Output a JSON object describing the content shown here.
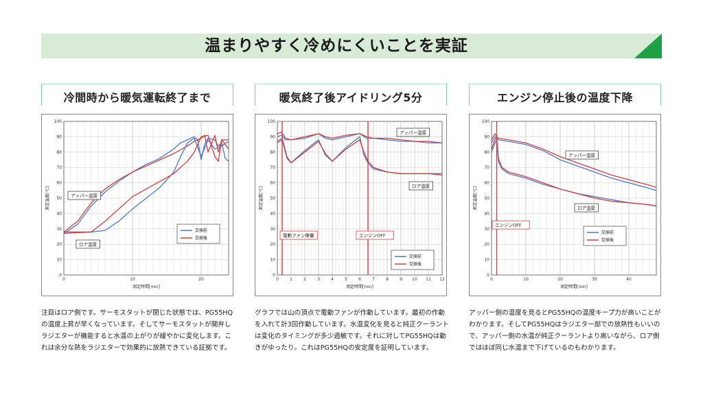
{
  "banner": {
    "title": "温まりやすく冷めにくいことを実証",
    "accent": "#1fa046",
    "bg": "#d7ebd7"
  },
  "panels": [
    {
      "title": "冷間時から暖気運転終了まで",
      "text": "注目はロア側です。サーモスタットが閉じた状態では、PG55HQの温度上昇が早くなっています。そしてサーモスタットが開弁しラジエターが機能すると水温の上がりが緩やかに変化します。これは余分な熱をラジエターで効果的に放熱できている証拠です。"
    },
    {
      "title": "暖気終了後アイドリング5分",
      "text": "グラフでは山の頂点で電動ファンが作動しています。最初の作動を入れて計3回作動しています。水温変化を見ると純正クーラントは変化のタイミングが多少過敏です。それに対してPG55HQは動きがゆったり。これはPG55HQの安定度を証明しています。"
    },
    {
      "title": "エンジン停止後の温度下降",
      "text": "アッパー側の温度を見るとPG55HQの温度キープ力が高いことがわかります。そしてPG55HQはラジエター部での放熱性もいいので、アッパー側の水温が純正クーラントより高いながら、ロア側ではほぼ同じ水温まで下げているのもわかります。"
    }
  ],
  "chart_data": [
    {
      "type": "line",
      "xlabel": "測定時間[min]",
      "ylabel": "測定温度[℃]",
      "xlim": [
        0,
        24
      ],
      "ylim": [
        0,
        100
      ],
      "xticks": [
        0,
        10,
        20
      ],
      "yticks": [
        0,
        10,
        20,
        30,
        40,
        50,
        60,
        70,
        80,
        90,
        100
      ],
      "annotations": [
        "アッパー温度",
        "ロア温度"
      ],
      "legend": {
        "position": "bottom-right",
        "entries": [
          "交換前",
          "交換後"
        ]
      },
      "series": [
        {
          "name": "交換前",
          "group": "アッパー温度",
          "color": "#4a78c8",
          "x": [
            0,
            2,
            4,
            6,
            8,
            10,
            12,
            14,
            16,
            17,
            18,
            19,
            19.5,
            20,
            20.5,
            21,
            22,
            22.5,
            23,
            23.5,
            24
          ],
          "y": [
            27,
            33,
            45,
            54,
            61,
            67,
            72,
            76,
            82,
            86,
            88,
            90,
            88,
            75,
            85,
            89,
            88,
            84,
            86,
            76,
            74
          ]
        },
        {
          "name": "交換後",
          "group": "アッパー温度",
          "color": "#d43c3c",
          "x": [
            0,
            2,
            4,
            6,
            8,
            10,
            12,
            14,
            16,
            18,
            19,
            20,
            20.5,
            21,
            22,
            22.5,
            23,
            24
          ],
          "y": [
            28,
            35,
            47,
            56,
            62,
            67,
            71,
            75,
            79,
            84,
            87,
            89,
            91,
            80,
            91,
            80,
            88,
            82
          ]
        },
        {
          "name": "交換前",
          "group": "ロア温度",
          "color": "#4a78c8",
          "x": [
            0,
            4,
            6,
            8,
            10,
            12,
            14,
            16,
            17,
            18,
            19,
            20,
            21,
            22,
            23,
            24
          ],
          "y": [
            27,
            28,
            29,
            35,
            43,
            50,
            57,
            67,
            77,
            86,
            89,
            77,
            88,
            82,
            84,
            87
          ]
        },
        {
          "name": "交換後",
          "group": "ロア温度",
          "color": "#d43c3c",
          "x": [
            0,
            4,
            6,
            8,
            10,
            12,
            14,
            16,
            18,
            19,
            20,
            21,
            22,
            22.5,
            23,
            24
          ],
          "y": [
            28,
            28,
            35,
            43,
            51,
            56,
            61,
            66,
            74,
            80,
            90,
            91,
            77,
            74,
            88,
            88
          ]
        }
      ]
    },
    {
      "type": "line",
      "xlabel": "測定時間[min]",
      "ylabel": "測定温度[℃]",
      "xlim": [
        0,
        12
      ],
      "ylim": [
        0,
        100
      ],
      "xticks": [
        0,
        1,
        2,
        3,
        4,
        5,
        6,
        7,
        8,
        9,
        10,
        11,
        12
      ],
      "yticks": [
        0,
        10,
        20,
        30,
        40,
        50,
        60,
        70,
        80,
        90,
        100
      ],
      "annotations": [
        "アッパー温度",
        "ロア温度",
        "電動ファン稼働",
        "エンジンOFF"
      ],
      "legend": {
        "position": "bottom-right",
        "entries": [
          "交換前",
          "交換後"
        ]
      },
      "vlines": [
        0.35,
        6.6
      ],
      "series": [
        {
          "name": "交換前",
          "group": "アッパー温度",
          "color": "#4a78c8",
          "x": [
            0,
            0.3,
            0.6,
            1,
            2,
            3,
            3.5,
            4,
            5,
            6,
            6.5,
            7,
            8,
            9,
            10,
            11,
            12
          ],
          "y": [
            90,
            91,
            88,
            88,
            89,
            92,
            89,
            88,
            90,
            92,
            89,
            89,
            88,
            87,
            87,
            86,
            86
          ]
        },
        {
          "name": "交換後",
          "group": "アッパー温度",
          "color": "#d43c3c",
          "x": [
            0,
            0.3,
            0.6,
            1,
            2,
            3,
            3.5,
            4,
            5,
            6,
            6.5,
            7,
            8,
            9,
            10,
            11,
            12
          ],
          "y": [
            92,
            93,
            89,
            88,
            90,
            92,
            90,
            89,
            91,
            92,
            90,
            89,
            89,
            88,
            87,
            87,
            86
          ]
        },
        {
          "name": "交換前",
          "group": "ロア温度",
          "color": "#4a78c8",
          "x": [
            0,
            0.35,
            0.7,
            1,
            2,
            3,
            3.5,
            4,
            5,
            6,
            6.3,
            6.6,
            7,
            8,
            9,
            10,
            11,
            12
          ],
          "y": [
            86,
            88,
            76,
            73,
            81,
            88,
            78,
            74,
            83,
            90,
            78,
            73,
            69,
            67,
            66,
            66,
            66,
            66
          ]
        },
        {
          "name": "交換後",
          "group": "ロア温度",
          "color": "#d43c3c",
          "x": [
            0,
            0.35,
            0.7,
            1,
            2,
            3,
            3.5,
            4,
            5,
            6,
            6.3,
            6.6,
            7,
            8,
            9,
            10,
            11,
            12
          ],
          "y": [
            87,
            89,
            77,
            73,
            80,
            87,
            79,
            74,
            82,
            88,
            80,
            74,
            70,
            67,
            66,
            66,
            66,
            65
          ]
        }
      ]
    },
    {
      "type": "line",
      "xlabel": "測定時間[min]",
      "ylabel": "測定温度[℃]",
      "xlim": [
        0,
        48
      ],
      "ylim": [
        0,
        100
      ],
      "xticks": [
        0,
        10,
        20,
        30,
        40
      ],
      "yticks": [
        0,
        10,
        20,
        30,
        40,
        50,
        60,
        70,
        80,
        90,
        100
      ],
      "annotations": [
        "アッパー温度",
        "ロア温度",
        "エンジンOFF"
      ],
      "legend": {
        "position": "bottom-right",
        "entries": [
          "交換前",
          "交換後"
        ]
      },
      "vlines": [
        1.5
      ],
      "series": [
        {
          "name": "交換前",
          "group": "アッパー温度",
          "color": "#4a78c8",
          "x": [
            0,
            1,
            1.5,
            2,
            5,
            10,
            15,
            20,
            25,
            30,
            35,
            40,
            45,
            48
          ],
          "y": [
            86,
            90,
            89,
            88,
            87,
            85,
            81,
            75,
            71,
            67,
            63,
            60,
            57,
            55
          ]
        },
        {
          "name": "交換後",
          "group": "アッパー温度",
          "color": "#d43c3c",
          "x": [
            0,
            1,
            1.5,
            2,
            5,
            10,
            15,
            20,
            25,
            30,
            35,
            40,
            45,
            48
          ],
          "y": [
            88,
            92,
            90,
            89,
            88,
            86,
            82,
            77,
            73,
            69,
            65,
            62,
            59,
            57
          ]
        },
        {
          "name": "交換前",
          "group": "ロア温度",
          "color": "#4a78c8",
          "x": [
            0,
            1,
            1.5,
            2,
            3,
            5,
            10,
            15,
            20,
            25,
            30,
            35,
            40,
            45,
            48
          ],
          "y": [
            80,
            86,
            88,
            74,
            69,
            66,
            63,
            59,
            56,
            53,
            51,
            49,
            47,
            46,
            45
          ]
        },
        {
          "name": "交換後",
          "group": "ロア温度",
          "color": "#d43c3c",
          "x": [
            0,
            1,
            1.5,
            2,
            3,
            5,
            10,
            15,
            20,
            25,
            30,
            35,
            40,
            45,
            48
          ],
          "y": [
            82,
            88,
            90,
            76,
            70,
            67,
            64,
            60,
            56,
            53,
            50,
            48,
            47,
            46,
            45
          ]
        }
      ]
    }
  ]
}
